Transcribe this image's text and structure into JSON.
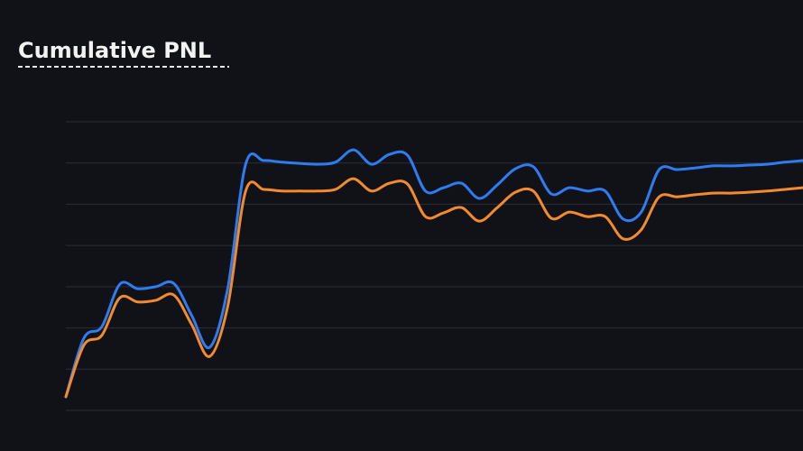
{
  "chart_data": {
    "type": "line",
    "title": "Cumulative PNL",
    "x": [
      0,
      1,
      2,
      3,
      4,
      5,
      6,
      7,
      8,
      9,
      10,
      11,
      12,
      13,
      14,
      15,
      16,
      17,
      18,
      19,
      20,
      21,
      22,
      23,
      24,
      25,
      26,
      27,
      28,
      29,
      30,
      31,
      32,
      33,
      34,
      35,
      36,
      37,
      38,
      39,
      40,
      41
    ],
    "xlim": [
      0,
      41
    ],
    "ylim": [
      0,
      7
    ],
    "yticks": [
      0,
      1,
      2,
      3,
      4,
      5,
      6,
      7
    ],
    "grid": true,
    "series": [
      {
        "color": "#2f7bf0",
        "values": [
          0.33,
          1.75,
          2.03,
          3.06,
          2.95,
          3.0,
          3.08,
          2.3,
          1.53,
          2.95,
          5.97,
          6.06,
          6.02,
          5.99,
          5.97,
          6.02,
          6.32,
          5.97,
          6.21,
          6.19,
          5.32,
          5.4,
          5.51,
          5.14,
          5.47,
          5.86,
          5.91,
          5.25,
          5.4,
          5.32,
          5.32,
          4.64,
          4.81,
          5.84,
          5.84,
          5.88,
          5.93,
          5.93,
          5.95,
          5.97,
          6.02,
          6.06
        ]
      },
      {
        "color": "#f28b30",
        "values": [
          0.33,
          1.58,
          1.82,
          2.73,
          2.63,
          2.67,
          2.8,
          2.08,
          1.31,
          2.52,
          5.32,
          5.36,
          5.32,
          5.32,
          5.32,
          5.36,
          5.62,
          5.32,
          5.51,
          5.49,
          4.7,
          4.79,
          4.92,
          4.59,
          4.92,
          5.29,
          5.32,
          4.66,
          4.81,
          4.7,
          4.7,
          4.16,
          4.38,
          5.18,
          5.18,
          5.23,
          5.27,
          5.27,
          5.29,
          5.32,
          5.36,
          5.4
        ]
      }
    ]
  }
}
